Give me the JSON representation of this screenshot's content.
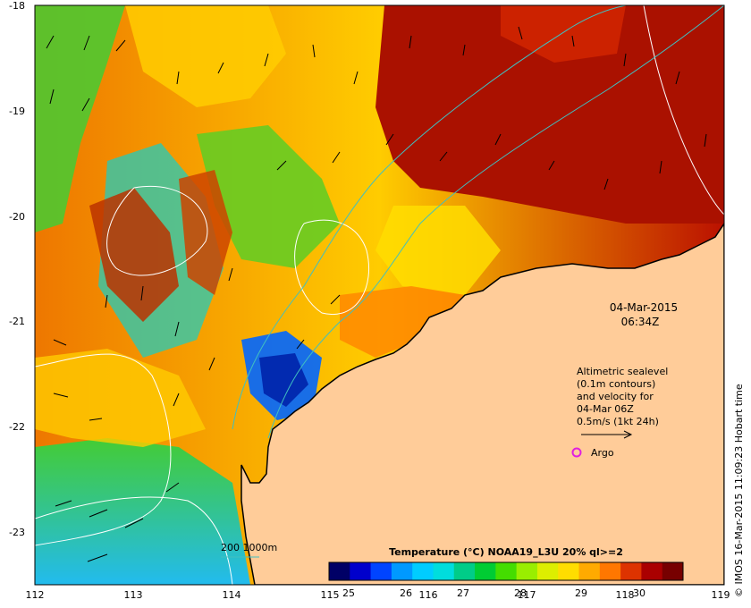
{
  "map": {
    "x_ticks": [
      "112",
      "113",
      "114",
      "115",
      "116",
      "117",
      "118",
      "119"
    ],
    "y_ticks": [
      "-18",
      "-19",
      "-20",
      "-21",
      "-22",
      "-23"
    ],
    "date_stamp": {
      "date": "04-Mar-2015",
      "time": "06:34Z"
    },
    "annotation": {
      "lines": [
        "Altimetric sealevel",
        "(0.1m contours)",
        "and velocity for",
        "04-Mar 06Z",
        "0.5m/s (1kt 24h)"
      ]
    },
    "argo_legend": {
      "label": "Argo",
      "color": "#e020e0"
    },
    "bathymetry_legend": {
      "label": "200  1000m",
      "color": "#40c0c0"
    },
    "credit": "© IMOS 16-Mar-2015 11:09:23 Hobart time",
    "land_color": "#ffcc99",
    "coast_color": "#000000",
    "sealevel_contour_color": "#ffffff",
    "vector_color": "#000000"
  },
  "colorbar": {
    "title": "Temperature (°C) NOAA19_L3U 20% ql>=2",
    "ticks": [
      "25",
      "26",
      "27",
      "28",
      "29",
      "30"
    ],
    "colors": [
      "#000066",
      "#0000cc",
      "#0044ff",
      "#0099ff",
      "#00ccff",
      "#00dddd",
      "#00cc88",
      "#00cc33",
      "#44dd00",
      "#99ee00",
      "#ddee00",
      "#ffdd00",
      "#ffaa00",
      "#ff7700",
      "#dd3300",
      "#aa0000",
      "#770000"
    ]
  }
}
